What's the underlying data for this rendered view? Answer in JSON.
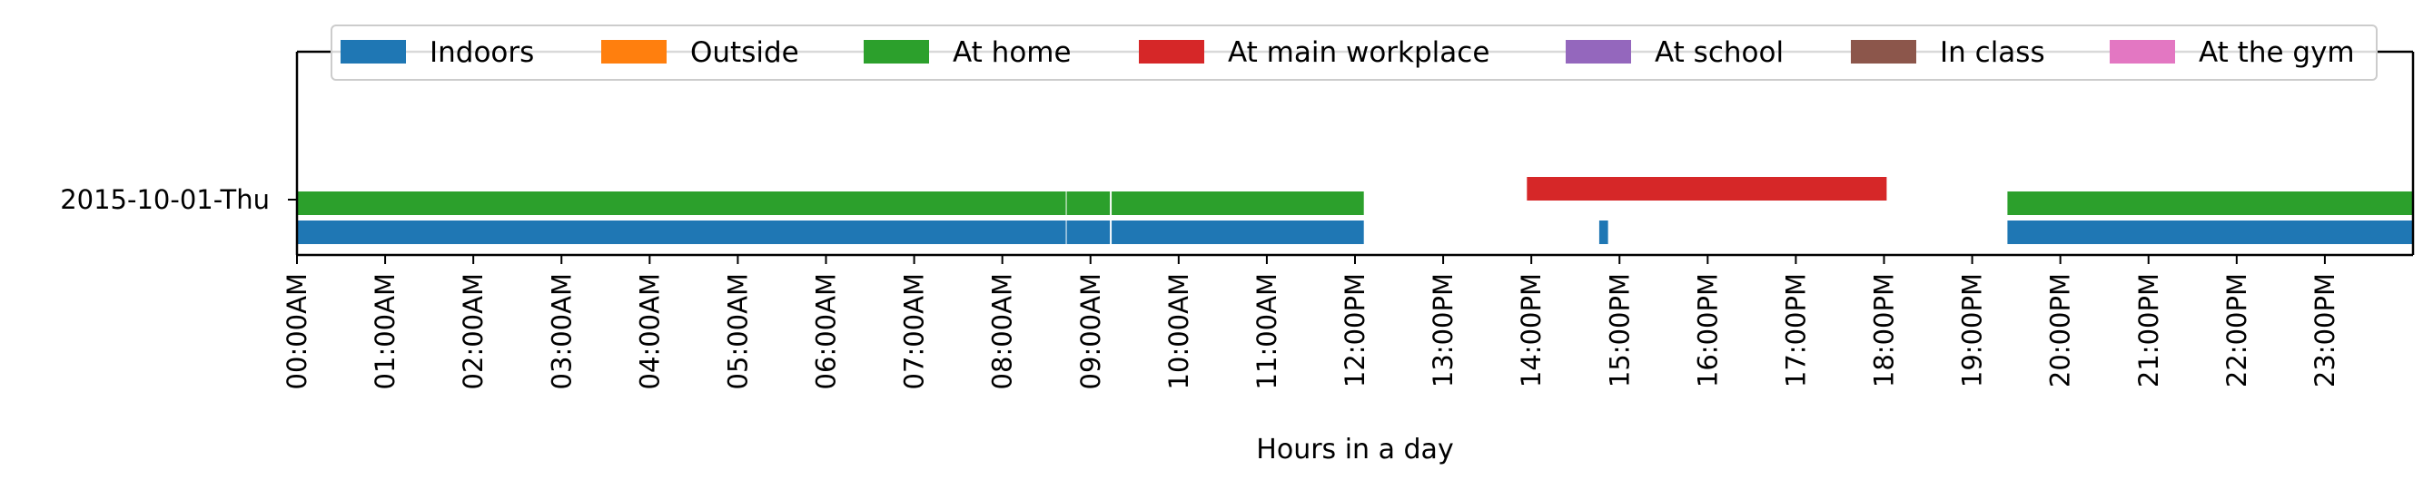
{
  "chart_data": {
    "type": "timeline",
    "title": "",
    "xlabel": "Hours in a day",
    "ylabel": "",
    "xlim": [
      0,
      24
    ],
    "grid": false,
    "legend_placement": "top-center",
    "rows": [
      "2015-10-01-Thu"
    ],
    "x_tick_labels": [
      "00:00AM",
      "01:00AM",
      "02:00AM",
      "03:00AM",
      "04:00AM",
      "05:00AM",
      "06:00AM",
      "07:00AM",
      "08:00AM",
      "09:00AM",
      "10:00AM",
      "11:00AM",
      "12:00PM",
      "13:00PM",
      "14:00PM",
      "15:00PM",
      "16:00PM",
      "17:00PM",
      "18:00PM",
      "19:00PM",
      "20:00PM",
      "21:00PM",
      "22:00PM",
      "23:00PM"
    ],
    "series": [
      {
        "name": "Indoors",
        "color": "#1f77b4",
        "lane": 0,
        "intervals": [
          [
            0,
            8.72
          ],
          [
            8.73,
            9.22
          ],
          [
            9.24,
            12.1
          ],
          [
            14.77,
            14.87
          ],
          [
            19.4,
            24
          ]
        ]
      },
      {
        "name": "Outside",
        "color": "#ff7f0e",
        "lane": 1,
        "intervals": []
      },
      {
        "name": "At home",
        "color": "#2ca02c",
        "lane": 1,
        "intervals": [
          [
            0,
            8.72
          ],
          [
            8.73,
            9.22
          ],
          [
            9.24,
            12.1
          ],
          [
            19.4,
            24
          ]
        ]
      },
      {
        "name": "At main workplace",
        "color": "#d62728",
        "lane": 2,
        "intervals": [
          [
            13.95,
            18.03
          ]
        ]
      },
      {
        "name": "At school",
        "color": "#9467bd",
        "lane": 2,
        "intervals": []
      },
      {
        "name": "In class",
        "color": "#8c564b",
        "lane": 2,
        "intervals": []
      },
      {
        "name": "At the gym",
        "color": "#e377c2",
        "lane": 2,
        "intervals": []
      }
    ]
  }
}
